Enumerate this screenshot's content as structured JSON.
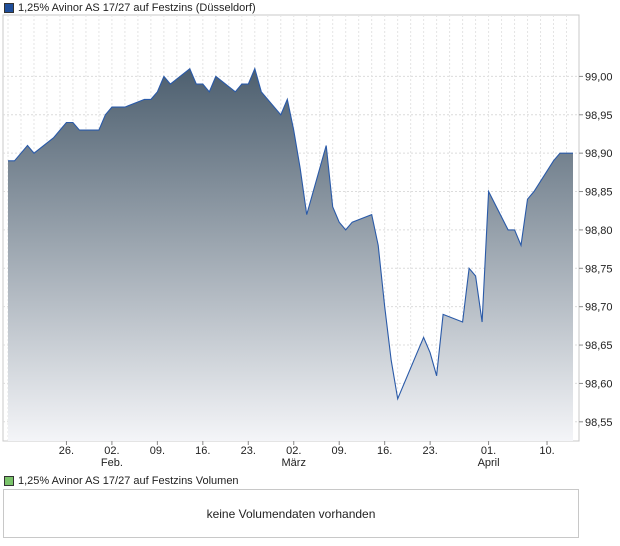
{
  "price_legend": {
    "label": "1,25% Avinor AS 17/27 auf Festzins (Düsseldorf)",
    "color": "#1f4e9a"
  },
  "volume_legend": {
    "label": "1,25% Avinor AS 17/27 auf Festzins Volumen",
    "color": "#7ac36a"
  },
  "volume_message": "keine Volumendaten vorhanden",
  "chart_data": {
    "type": "area",
    "title": "",
    "xlabel": "",
    "ylabel": "",
    "ylim": [
      98.525,
      99.08
    ],
    "yticks": [
      "98,55",
      "98,60",
      "98,65",
      "98,70",
      "98,75",
      "98,80",
      "98,85",
      "98,90",
      "98,95",
      "99,00"
    ],
    "xticks": [
      "26.",
      "02.",
      "09.",
      "16.",
      "23.",
      "02.",
      "09.",
      "16.",
      "23.",
      "01.",
      "10."
    ],
    "month_labels": [
      {
        "label": "Feb.",
        "under_tick": 1
      },
      {
        "label": "März",
        "under_tick": 5
      },
      {
        "label": "April",
        "under_tick": 9
      }
    ],
    "x_start": "2022-01-17",
    "x_end": "2022-04-14",
    "line_color": "#2a5aa8",
    "area_top_color": "#4d5f6f",
    "area_bottom_color": "#f4f5f8",
    "grid": true,
    "series": [
      {
        "x": [
          "2022-01-17",
          "2022-01-18",
          "2022-01-19",
          "2022-01-20",
          "2022-01-21",
          "2022-01-24",
          "2022-01-25",
          "2022-01-26",
          "2022-01-27",
          "2022-01-28",
          "2022-01-31",
          "2022-02-01",
          "2022-02-02",
          "2022-02-03",
          "2022-02-04",
          "2022-02-07",
          "2022-02-08",
          "2022-02-09",
          "2022-02-10",
          "2022-02-11",
          "2022-02-14",
          "2022-02-15",
          "2022-02-16",
          "2022-02-17",
          "2022-02-18",
          "2022-02-21",
          "2022-02-22",
          "2022-02-23",
          "2022-02-24",
          "2022-02-25",
          "2022-02-28",
          "2022-03-01",
          "2022-03-02",
          "2022-03-03",
          "2022-03-04",
          "2022-03-07",
          "2022-03-08",
          "2022-03-09",
          "2022-03-10",
          "2022-03-11",
          "2022-03-14",
          "2022-03-15",
          "2022-03-16",
          "2022-03-17",
          "2022-03-18",
          "2022-03-21",
          "2022-03-22",
          "2022-03-23",
          "2022-03-24",
          "2022-03-25",
          "2022-03-28",
          "2022-03-29",
          "2022-03-30",
          "2022-03-31",
          "2022-04-01",
          "2022-04-04",
          "2022-04-05",
          "2022-04-06",
          "2022-04-07",
          "2022-04-08",
          "2022-04-11",
          "2022-04-12",
          "2022-04-13",
          "2022-04-14"
        ],
        "y": [
          98.89,
          98.89,
          98.9,
          98.91,
          98.9,
          98.92,
          98.93,
          98.94,
          98.94,
          98.93,
          98.93,
          98.95,
          98.96,
          98.96,
          98.96,
          98.97,
          98.97,
          98.98,
          99.0,
          98.99,
          99.01,
          98.99,
          98.99,
          98.98,
          99.0,
          98.98,
          98.99,
          98.99,
          99.01,
          98.98,
          98.95,
          98.97,
          98.93,
          98.88,
          98.82,
          98.91,
          98.83,
          98.81,
          98.8,
          98.81,
          98.82,
          98.78,
          98.7,
          98.63,
          98.58,
          98.64,
          98.66,
          98.64,
          98.61,
          98.69,
          98.68,
          98.75,
          98.74,
          98.68,
          98.85,
          98.8,
          98.8,
          98.78,
          98.84,
          98.85,
          98.89,
          98.9,
          98.9,
          98.9
        ]
      }
    ]
  }
}
